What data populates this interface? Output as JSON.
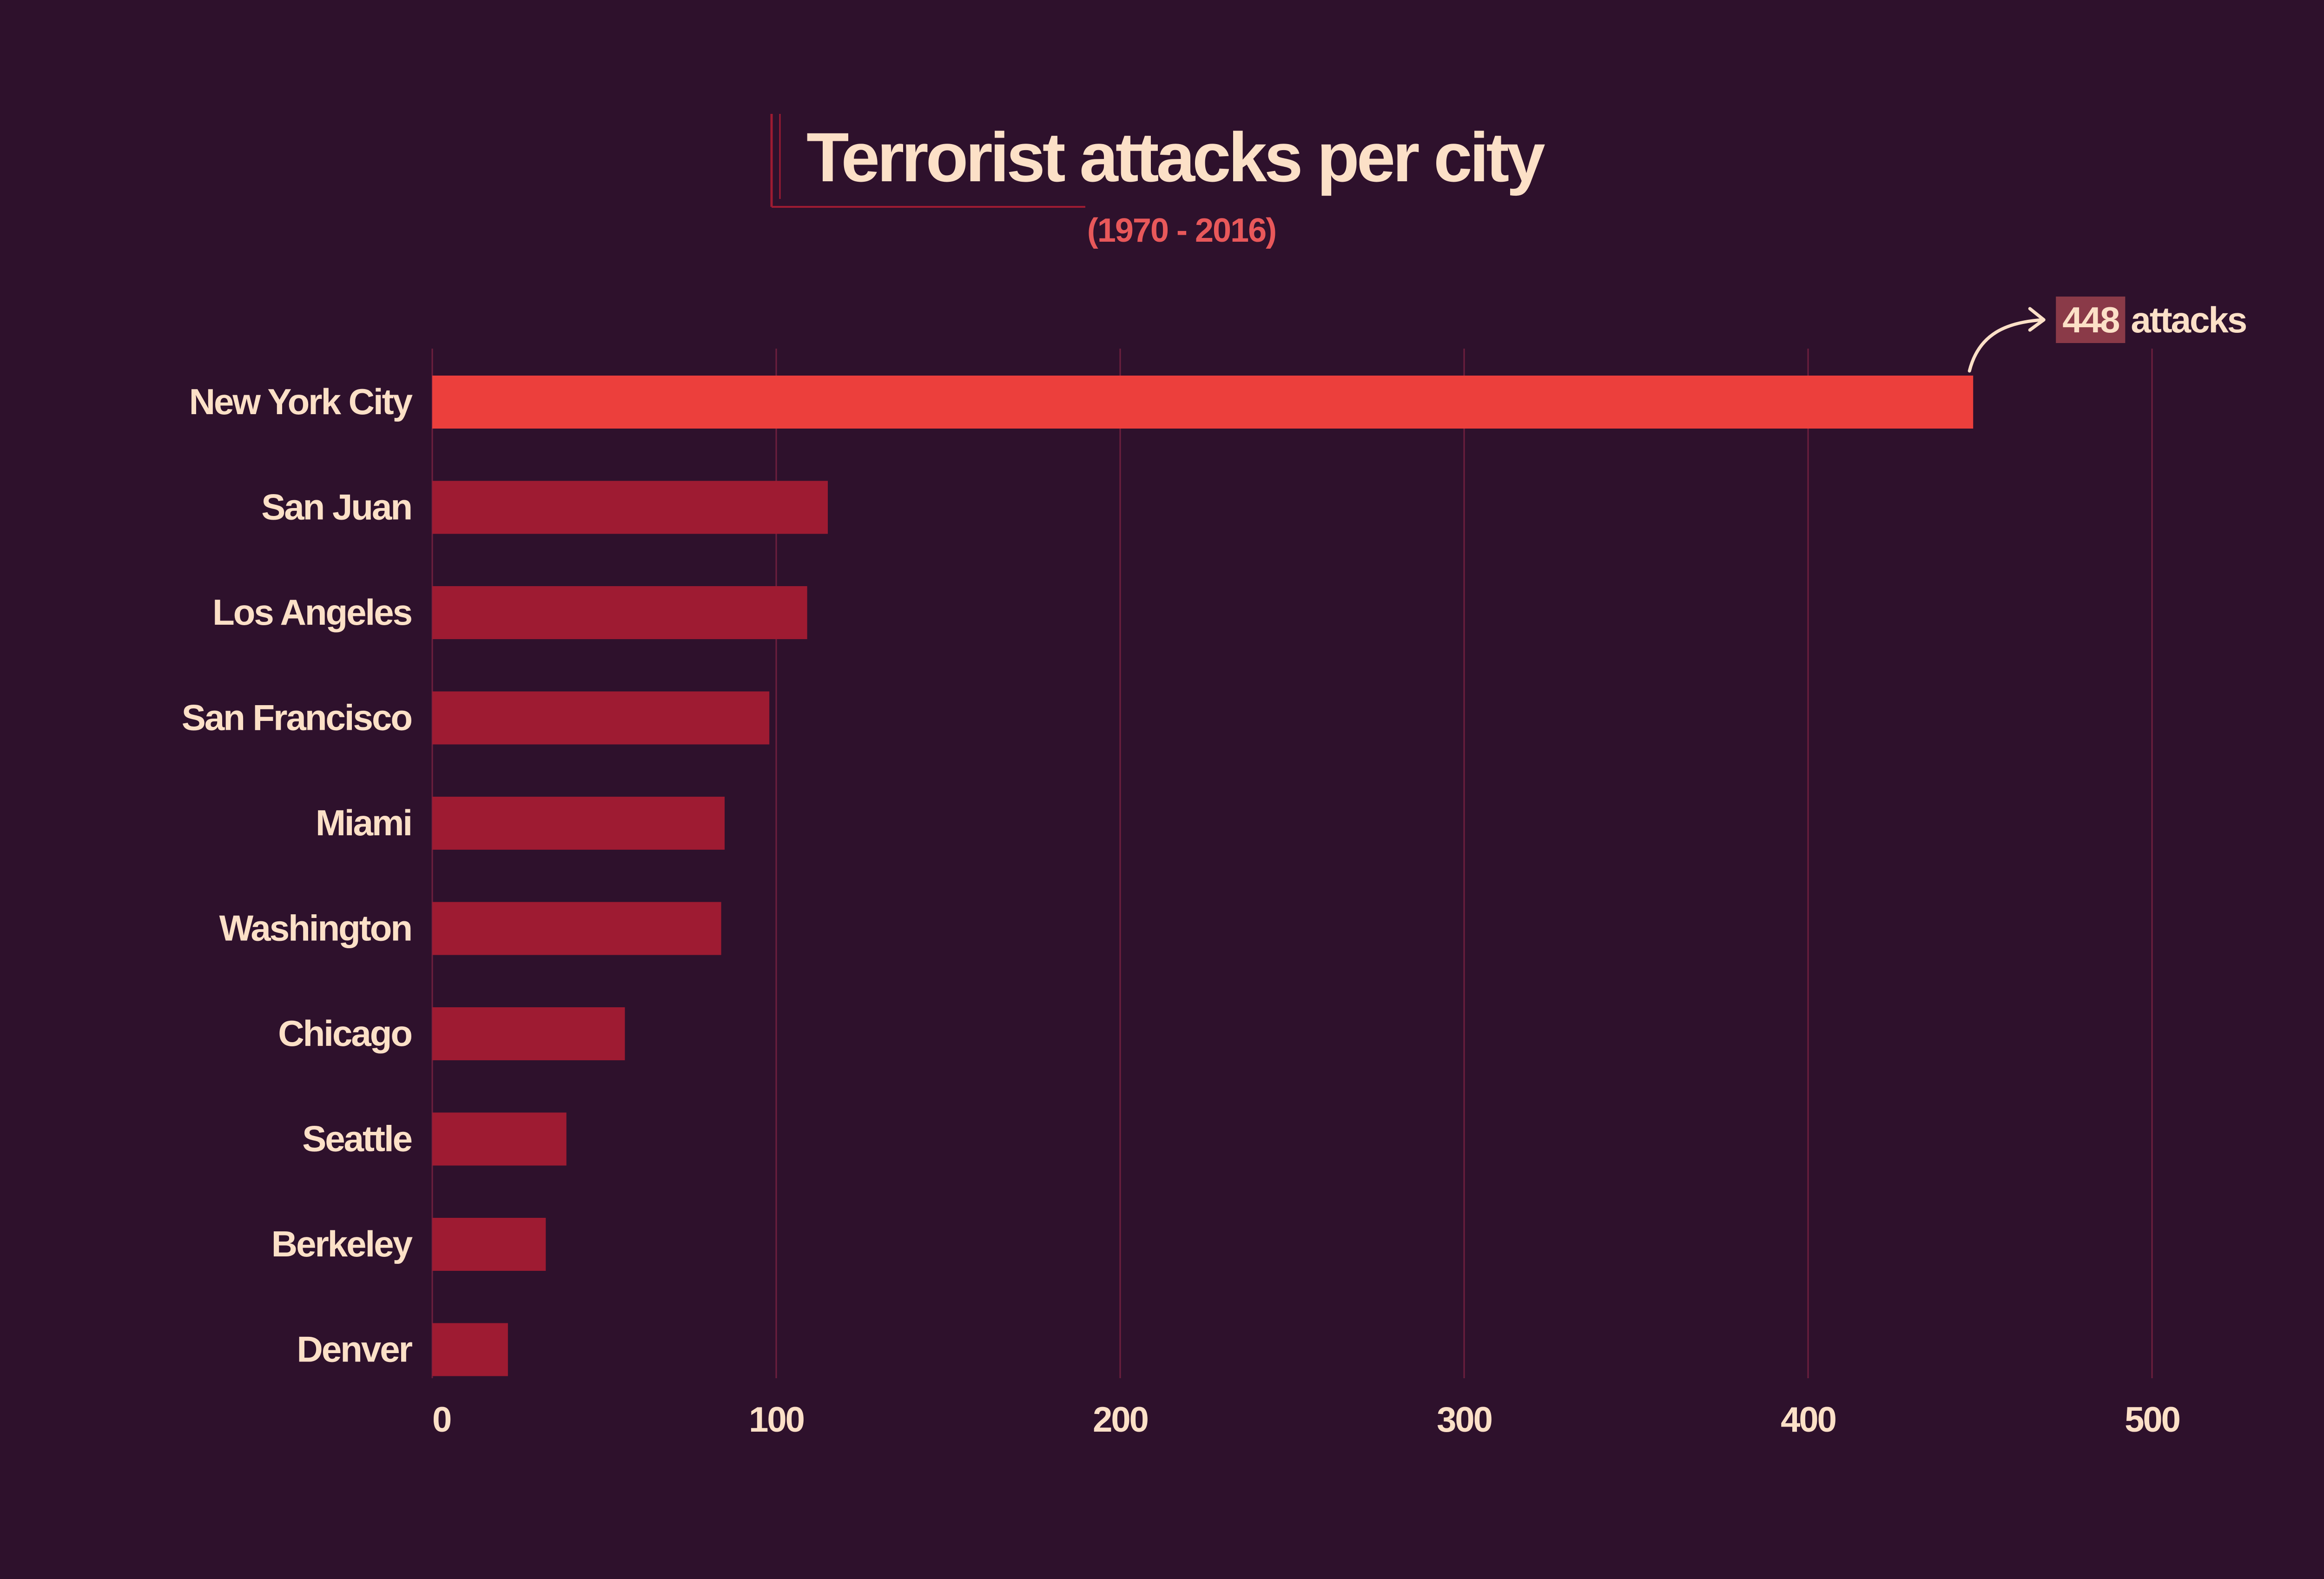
{
  "colors": {
    "background": "#2e112c",
    "bar": "#9e1b32",
    "bar_highlight": "#ec3f3c",
    "text": "#fce0c7",
    "subtitle": "#e8585a",
    "grid": "#6e1f3e",
    "annotation_box": "#8a3a48"
  },
  "chart_data": {
    "type": "bar",
    "orientation": "horizontal",
    "title": "Terrorist attacks per city",
    "subtitle": "(1970 - 2016)",
    "xlabel": "",
    "ylabel": "",
    "xlim": [
      0,
      500
    ],
    "xticks": [
      0,
      100,
      200,
      300,
      400,
      500
    ],
    "grid": "vertical",
    "categories": [
      "New York City",
      "San Juan",
      "Los Angeles",
      "San Francisco",
      "Miami",
      "Washington",
      "Chicago",
      "Seattle",
      "Berkeley",
      "Denver"
    ],
    "values": [
      448,
      115,
      109,
      98,
      85,
      84,
      56,
      39,
      33,
      22
    ],
    "highlight_index": 0,
    "annotation": {
      "value": "448",
      "text": "attacks"
    }
  }
}
